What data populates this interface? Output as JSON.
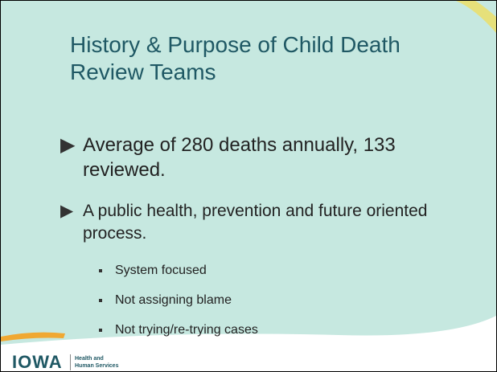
{
  "slide": {
    "title": "History & Purpose of Child Death Review Teams",
    "bullets": [
      {
        "text": "Average of 280 deaths annually, 133 reviewed.",
        "subs": []
      },
      {
        "text": "A public health, prevention and future oriented process.",
        "subs": [
          "System focused",
          "Not assigning blame",
          "Not trying/re-trying cases"
        ]
      }
    ]
  },
  "footer": {
    "logo": "IOWA",
    "agency": "Health and Human Services"
  }
}
